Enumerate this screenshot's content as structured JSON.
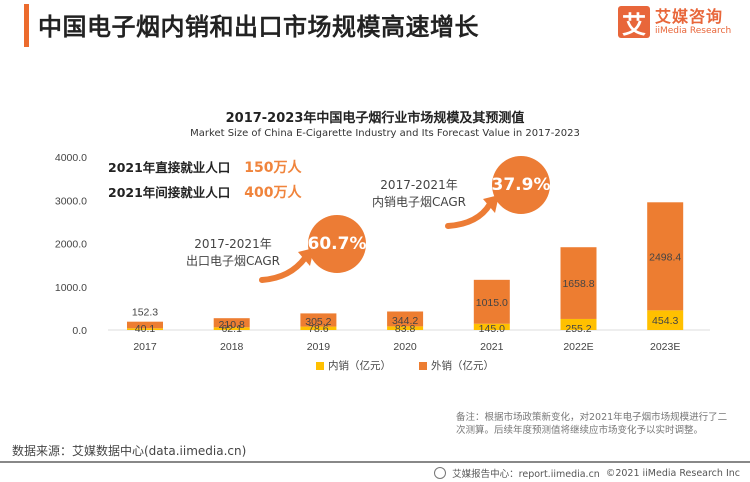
{
  "header": {
    "title": "中国电子烟内销和出口市场规模高速增长",
    "logo_mark": "艾",
    "logo_cn": "艾媒咨询",
    "logo_en": "iiMedia Research"
  },
  "employment": [
    {
      "label": "2021年直接就业人口",
      "value": "150万人"
    },
    {
      "label": "2021年间接就业人口",
      "value": "400万人"
    }
  ],
  "cagr": {
    "export": {
      "line1": "2017-2021年",
      "line2": "出口电子烟CAGR",
      "value": "60.7%"
    },
    "domestic": {
      "line1": "2017-2021年",
      "line2": "内销电子烟CAGR",
      "value": "37.9%"
    }
  },
  "chart_data": {
    "type": "bar",
    "stacked": true,
    "title": "2017-2023年中国电子烟行业市场规模及其预测值",
    "subtitle": "Market Size of China E-Cigarette Industry and Its Forecast Value in 2017-2023",
    "categories": [
      "2017",
      "2018",
      "2019",
      "2020",
      "2021",
      "2022E",
      "2023E"
    ],
    "series": [
      {
        "name": "内销（亿元）",
        "color": "#ffc000",
        "values": [
          40.1,
          62.1,
          78.6,
          83.8,
          145.0,
          255.2,
          454.3
        ]
      },
      {
        "name": "外销（亿元）",
        "color": "#ed7d31",
        "values": [
          152.3,
          210.8,
          305.2,
          344.2,
          1015.0,
          1658.8,
          2498.4
        ]
      }
    ],
    "ylim": [
      0,
      4000
    ],
    "yticks": [
      "0.0",
      "1000.0",
      "2000.0",
      "3000.0",
      "4000.0"
    ],
    "xlabel": "",
    "ylabel": "",
    "grid": false,
    "legend": "bottom"
  },
  "note": "备注：根据市场政策新变化，对2021年电子烟市场规模进行了二次测算。后续年度预测值将继续应市场变化予以实时调整。",
  "source": "数据来源：艾媒数据中心(data.iimedia.cn)",
  "footer": {
    "report": "艾媒报告中心：report.iimedia.cn",
    "copyright": "©2021  iiMedia Research  Inc"
  }
}
